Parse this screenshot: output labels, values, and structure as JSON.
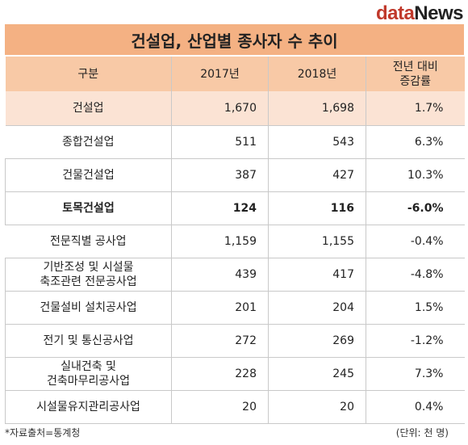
{
  "logo": {
    "part1": "data",
    "part2": "News"
  },
  "title": "건설업, 산업별 종사자 수 추이",
  "header": {
    "category": "구분",
    "y2017": "2017년",
    "y2018": "2018년",
    "change_line1": "전년 대비",
    "change_line2": "증감률"
  },
  "rows": [
    {
      "label": "건설업",
      "label2": "",
      "v2017": "1,670",
      "v2018": "1,698",
      "change": "1.7%"
    },
    {
      "label": "종합건설업",
      "label2": "",
      "v2017": "511",
      "v2018": "543",
      "change": "6.3%"
    },
    {
      "label": "건물건설업",
      "label2": "",
      "v2017": "387",
      "v2018": "427",
      "change": "10.3%"
    },
    {
      "label": "토목건설업",
      "label2": "",
      "v2017": "124",
      "v2018": "116",
      "change": "-6.0%"
    },
    {
      "label": "전문직별 공사업",
      "label2": "",
      "v2017": "1,159",
      "v2018": "1,155",
      "change": "-0.4%"
    },
    {
      "label": "기반조성 및 시설물",
      "label2": "축조관련 전문공사업",
      "v2017": "439",
      "v2018": "417",
      "change": "-4.8%"
    },
    {
      "label": "건물설비 설치공사업",
      "label2": "",
      "v2017": "201",
      "v2018": "204",
      "change": "1.5%"
    },
    {
      "label": "전기 및 통신공사업",
      "label2": "",
      "v2017": "272",
      "v2018": "269",
      "change": "-1.2%"
    },
    {
      "label": "실내건축 및",
      "label2": "건축마무리공사업",
      "v2017": "228",
      "v2018": "245",
      "change": "7.3%"
    },
    {
      "label": "시설물유지관리공사업",
      "label2": "",
      "v2017": "20",
      "v2018": "20",
      "change": "0.4%"
    }
  ],
  "footer": {
    "source": "*자료출처=통계청",
    "unit": "(단위: 천 명)"
  },
  "colors": {
    "title_bg": "#f4b183",
    "header_bg": "#f8c9a6",
    "highlight_row_bg": "#fbe3d4",
    "logo_accent": "#c0392b"
  }
}
